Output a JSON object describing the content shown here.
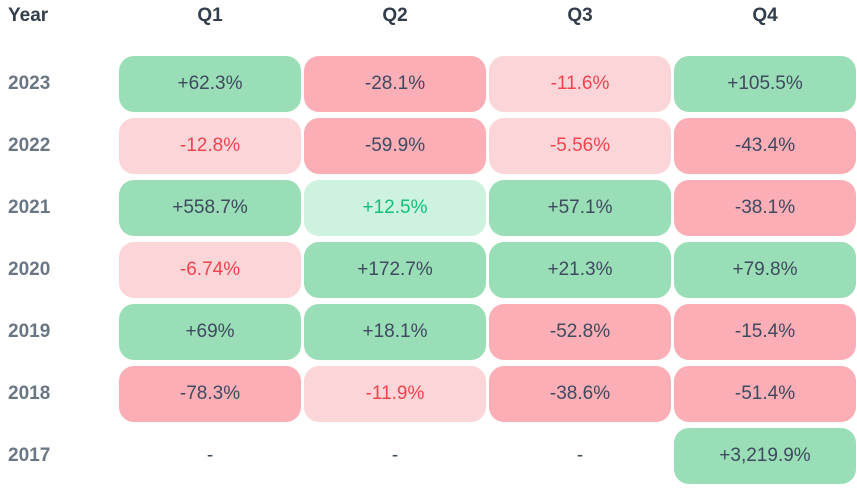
{
  "header": {
    "year": "Year",
    "quarters": [
      "Q1",
      "Q2",
      "Q3",
      "Q4"
    ]
  },
  "rows": [
    {
      "year": "2023",
      "cells": [
        {
          "label": "+62.3%",
          "tone": "pos"
        },
        {
          "label": "-28.1%",
          "tone": "neg"
        },
        {
          "label": "-11.6%",
          "tone": "neg-light"
        },
        {
          "label": "+105.5%",
          "tone": "pos"
        }
      ]
    },
    {
      "year": "2022",
      "cells": [
        {
          "label": "-12.8%",
          "tone": "neg-light"
        },
        {
          "label": "-59.9%",
          "tone": "neg"
        },
        {
          "label": "-5.56%",
          "tone": "neg-light"
        },
        {
          "label": "-43.4%",
          "tone": "neg"
        }
      ]
    },
    {
      "year": "2021",
      "cells": [
        {
          "label": "+558.7%",
          "tone": "pos"
        },
        {
          "label": "+12.5%",
          "tone": "pos-light"
        },
        {
          "label": "+57.1%",
          "tone": "pos"
        },
        {
          "label": "-38.1%",
          "tone": "neg"
        }
      ]
    },
    {
      "year": "2020",
      "cells": [
        {
          "label": "-6.74%",
          "tone": "neg-light"
        },
        {
          "label": "+172.7%",
          "tone": "pos"
        },
        {
          "label": "+21.3%",
          "tone": "pos"
        },
        {
          "label": "+79.8%",
          "tone": "pos"
        }
      ]
    },
    {
      "year": "2019",
      "cells": [
        {
          "label": "+69%",
          "tone": "pos"
        },
        {
          "label": "+18.1%",
          "tone": "pos"
        },
        {
          "label": "-52.8%",
          "tone": "neg"
        },
        {
          "label": "-15.4%",
          "tone": "neg"
        }
      ]
    },
    {
      "year": "2018",
      "cells": [
        {
          "label": "-78.3%",
          "tone": "neg"
        },
        {
          "label": "-11.9%",
          "tone": "neg-light"
        },
        {
          "label": "-38.6%",
          "tone": "neg"
        },
        {
          "label": "-51.4%",
          "tone": "neg"
        }
      ]
    },
    {
      "year": "2017",
      "cells": [
        {
          "label": "-",
          "tone": "none"
        },
        {
          "label": "-",
          "tone": "none"
        },
        {
          "label": "-",
          "tone": "none"
        },
        {
          "label": "+3,219.9%",
          "tone": "pos"
        }
      ]
    }
  ],
  "colors": {
    "positive_strong_bg": "#99DEB6",
    "positive_light_bg": "#CDF2DF",
    "negative_strong_bg": "#FBAEB5",
    "negative_light_bg": "#FCD5D9",
    "positive_text": "#10BF7A",
    "negative_text": "#F0434F",
    "value_text": "#3E4A5E",
    "header_text": "#333D4B",
    "year_text": "#6B7684"
  },
  "chart_data": {
    "type": "heatmap",
    "title": "",
    "columns": [
      "Q1",
      "Q2",
      "Q3",
      "Q4"
    ],
    "rows": [
      "2023",
      "2022",
      "2021",
      "2020",
      "2019",
      "2018",
      "2017"
    ],
    "values": [
      [
        62.3,
        -28.1,
        -11.6,
        105.5
      ],
      [
        -12.8,
        -59.9,
        -5.56,
        -43.4
      ],
      [
        558.7,
        12.5,
        57.1,
        -38.1
      ],
      [
        -6.74,
        172.7,
        21.3,
        79.8
      ],
      [
        69,
        18.1,
        -52.8,
        -15.4
      ],
      [
        -78.3,
        -11.9,
        -38.6,
        -51.4
      ],
      [
        null,
        null,
        null,
        3219.9
      ]
    ],
    "value_format": "signed percent",
    "color_coding": "green background = positive, red/pink background = negative; small magnitudes (under ~13%) use a light background with colored text, larger magnitudes use a stronger background with dark slate text; missing values shown as dash with no background"
  }
}
